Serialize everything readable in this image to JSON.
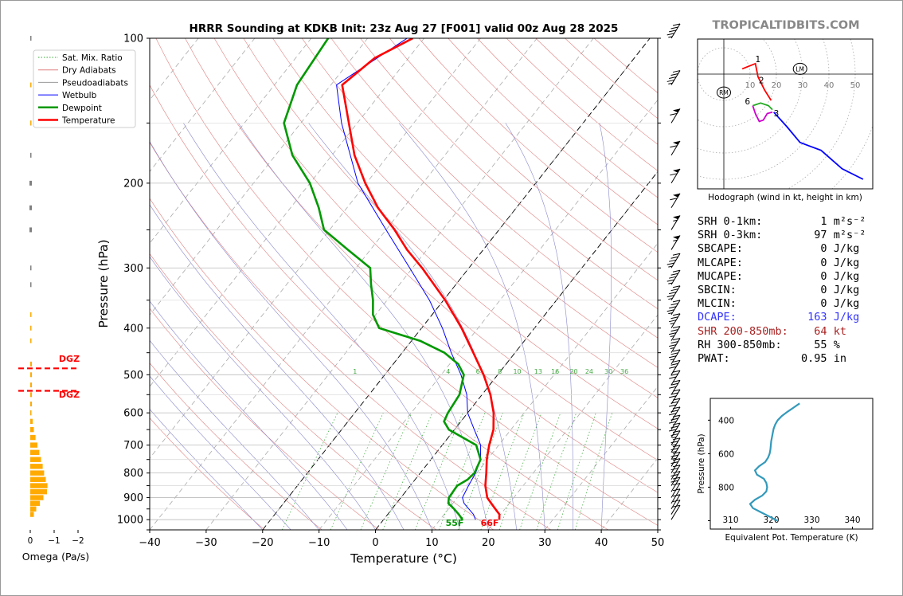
{
  "title": "HRRR Sounding at KDKB Init: 23z Aug 27 [F001] valid 00z Aug 28 2025",
  "watermark": "TROPICALTIDBITS.COM",
  "colors": {
    "temperature": "#ff0000",
    "dewpoint": "#009900",
    "wetbulb": "#0000ff",
    "dry_adiabat": "#e08080",
    "pseudoadiabat": "#8888cc",
    "mixing_ratio": "#33aa33",
    "isotherm": "#999999",
    "omega_bar": "#ffaa00",
    "omega_bar_upper": "#808080",
    "dgz": "#ff0000",
    "theta_e": "#3399bb",
    "dcape": "#3333ff",
    "shear": "#aa2222"
  },
  "legend": [
    "Sat. Mix. Ratio",
    "Dry Adiabats",
    "Pseudoadiabats",
    "Wetbulb",
    "Dewpoint",
    "Temperature"
  ],
  "omega": {
    "xlabel": "Omega (Pa/s)",
    "ticks": [
      "0",
      "−1",
      "−2"
    ],
    "dgz_label": "DGZ",
    "dgz_top_hpa": 485,
    "dgz_bottom_hpa": 540
  },
  "surface_labels": {
    "temperature": "66F",
    "dewpoint": "55F"
  },
  "mixing_ratio_labels": [
    "1",
    "4",
    "6",
    "8",
    "10",
    "13",
    "16",
    "20",
    "24",
    "30",
    "36"
  ],
  "hodograph": {
    "caption": "Hodograph (wind in kt, height in km)",
    "ring_labels": [
      "10",
      "20",
      "30",
      "40",
      "50"
    ],
    "markers": [
      "RM",
      "LM"
    ],
    "height_labels": [
      "1",
      "2",
      "3",
      "6"
    ]
  },
  "stats": [
    {
      "label": "SRH 0-1km:",
      "value": "1",
      "unit": "m²s⁻²",
      "color": "#000000"
    },
    {
      "label": "SRH 0-3km:",
      "value": "97",
      "unit": "m²s⁻²",
      "color": "#000000"
    },
    {
      "label": "SBCAPE:",
      "value": "0",
      "unit": "J/kg",
      "color": "#000000"
    },
    {
      "label": "MLCAPE:",
      "value": "0",
      "unit": "J/kg",
      "color": "#000000"
    },
    {
      "label": "MUCAPE:",
      "value": "0",
      "unit": "J/kg",
      "color": "#000000"
    },
    {
      "label": "SBCIN:",
      "value": "0",
      "unit": "J/kg",
      "color": "#000000"
    },
    {
      "label": "MLCIN:",
      "value": "0",
      "unit": "J/kg",
      "color": "#000000"
    },
    {
      "label": "DCAPE:",
      "value": "163",
      "unit": "J/kg",
      "color": "#3333ff"
    },
    {
      "label": "SHR 200-850mb:",
      "value": "64",
      "unit": "kt",
      "color": "#aa2222"
    },
    {
      "label": "RH 300-850mb:",
      "value": "55",
      "unit": "%",
      "color": "#000000"
    },
    {
      "label": "PWAT:",
      "value": "0.95",
      "unit": "in",
      "color": "#000000"
    }
  ],
  "chart_data": [
    {
      "type": "line",
      "title": "HRRR Sounding at KDKB Init: 23z Aug 27 [F001] valid 00z Aug 28 2025",
      "xlabel": "Temperature (°C)",
      "ylabel": "Pressure (hPa)",
      "xlim": [
        -40,
        50
      ],
      "ylim": [
        1050,
        100
      ],
      "yscale": "log",
      "x_ticks": [
        -40,
        -30,
        -20,
        -10,
        0,
        10,
        20,
        30,
        40,
        50
      ],
      "y_ticks": [
        100,
        200,
        300,
        400,
        500,
        600,
        700,
        800,
        900,
        1000
      ],
      "grid": true,
      "legend_position": "top-left",
      "series": [
        {
          "name": "Temperature",
          "pressure": [
            1000,
            975,
            950,
            925,
            900,
            850,
            800,
            750,
            700,
            650,
            600,
            550,
            500,
            450,
            400,
            350,
            300,
            275,
            250,
            225,
            200,
            175,
            150,
            125,
            110,
            100
          ],
          "values": [
            20.5,
            19.8,
            18.3,
            16.8,
            15.3,
            13.3,
            11.7,
            9.9,
            8.3,
            6.9,
            4.6,
            1.5,
            -2.5,
            -7.4,
            -12.9,
            -19.7,
            -28.3,
            -33.5,
            -38.5,
            -44.5,
            -50.2,
            -56.0,
            -61.5,
            -68.0,
            -66.0,
            -62.0
          ]
        },
        {
          "name": "Dewpoint",
          "pressure": [
            1000,
            975,
            950,
            925,
            900,
            850,
            825,
            800,
            750,
            700,
            650,
            625,
            600,
            550,
            500,
            475,
            450,
            425,
            400,
            375,
            350,
            325,
            300,
            275,
            250,
            225,
            200,
            175,
            150,
            125,
            100
          ],
          "values": [
            14.0,
            12.6,
            11.0,
            9.2,
            8.5,
            8.3,
            9.3,
            9.6,
            8.8,
            6.0,
            -1.0,
            -3.0,
            -3.5,
            -4.0,
            -6.0,
            -8.5,
            -12.5,
            -18.5,
            -27.5,
            -30.5,
            -32.5,
            -35.0,
            -37.5,
            -44.0,
            -51.0,
            -55.0,
            -60.0,
            -67.0,
            -73.0,
            -76.0,
            -77.0
          ]
        },
        {
          "name": "Wetbulb",
          "pressure": [
            1000,
            975,
            950,
            925,
            900,
            850,
            800,
            750,
            700,
            650,
            600,
            550,
            500,
            450,
            400,
            350,
            300,
            250,
            200,
            150,
            125,
            100
          ],
          "values": [
            16.3,
            15.2,
            13.6,
            12.0,
            10.9,
            10.3,
            9.8,
            8.8,
            6.8,
            3.5,
            0.0,
            -2.7,
            -6.5,
            -11.3,
            -16.3,
            -22.5,
            -30.5,
            -40.0,
            -51.5,
            -62.8,
            -69.0,
            -63.0
          ]
        }
      ]
    },
    {
      "type": "bar",
      "title": "",
      "xlabel": "Omega (Pa/s)",
      "ylabel": "",
      "xlim": [
        0,
        -2
      ],
      "pressure": [
        975,
        950,
        925,
        900,
        875,
        850,
        825,
        800,
        775,
        750,
        725,
        700,
        675,
        650,
        625,
        600
      ],
      "values": [
        -0.15,
        -0.25,
        -0.4,
        -0.55,
        -0.7,
        -0.72,
        -0.65,
        -0.58,
        -0.52,
        -0.45,
        -0.38,
        -0.3,
        -0.22,
        -0.15,
        -0.1,
        -0.05
      ]
    },
    {
      "type": "line",
      "title": "",
      "xlabel": "Equivalent Pot. Temperature (K)",
      "ylabel": "Pressure (hPa)",
      "xlim": [
        305,
        345
      ],
      "ylim": [
        1000,
        300
      ],
      "x_ticks": [
        310,
        320,
        330,
        340
      ],
      "y_ticks": [
        400,
        600,
        800
      ],
      "series": [
        {
          "name": "Theta-E",
          "pressure": [
            1000,
            975,
            950,
            925,
            900,
            875,
            850,
            825,
            800,
            775,
            750,
            725,
            700,
            675,
            650,
            625,
            600,
            575,
            550,
            525,
            500,
            475,
            450,
            425,
            400,
            375,
            350,
            325,
            300
          ],
          "values": [
            321.5,
            319.5,
            317.5,
            315.5,
            314.8,
            316.0,
            317.8,
            318.8,
            319.0,
            318.8,
            318.2,
            316.5,
            316.0,
            317.0,
            318.5,
            319.2,
            319.6,
            319.8,
            319.9,
            320.0,
            320.2,
            320.4,
            320.6,
            321.0,
            321.6,
            322.6,
            324.0,
            325.5,
            327.0
          ]
        }
      ]
    }
  ]
}
